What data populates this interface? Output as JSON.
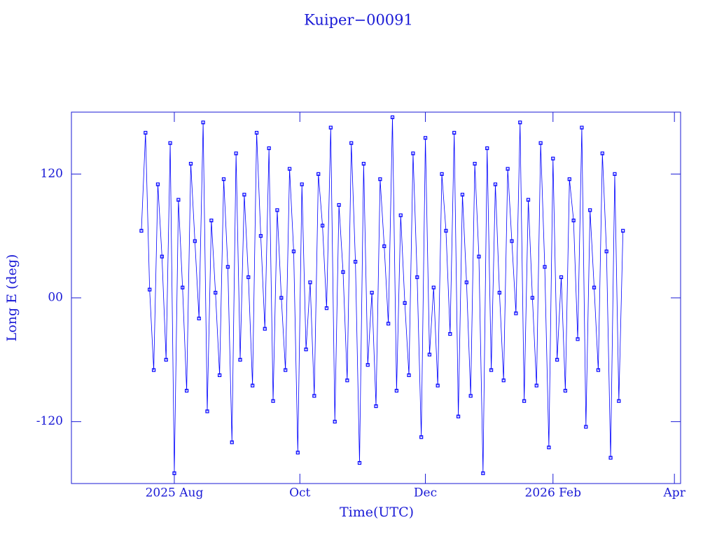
{
  "chart_data": {
    "type": "line",
    "title": "Kuiper−00091",
    "x_label": "Time(UTC)",
    "y_label": "Long E (deg)",
    "color": "#0000ff",
    "xlim": [
      "2025-06-12",
      "2026-04-04"
    ],
    "xticks": [
      {
        "value": "2025-08-01",
        "label": "2025 Aug"
      },
      {
        "value": "2025-10-01",
        "label": "Oct"
      },
      {
        "value": "2025-12-01",
        "label": "Dec"
      },
      {
        "value": "2026-02-01",
        "label": "2026 Feb"
      },
      {
        "value": "2026-04-01",
        "label": "Apr"
      }
    ],
    "ylim": [
      -180,
      180
    ],
    "yticks": [
      -120,
      {
        "value": 0,
        "label": "00"
      },
      120
    ],
    "x": [
      "2025-07-16",
      "2025-07-18",
      "2025-07-20",
      "2025-07-22",
      "2025-07-24",
      "2025-07-26",
      "2025-07-28",
      "2025-07-30",
      "2025-08-01",
      "2025-08-03",
      "2025-08-05",
      "2025-08-07",
      "2025-08-09",
      "2025-08-11",
      "2025-08-13",
      "2025-08-15",
      "2025-08-17",
      "2025-08-19",
      "2025-08-21",
      "2025-08-23",
      "2025-08-25",
      "2025-08-27",
      "2025-08-29",
      "2025-08-31",
      "2025-09-02",
      "2025-09-04",
      "2025-09-06",
      "2025-09-08",
      "2025-09-10",
      "2025-09-12",
      "2025-09-14",
      "2025-09-16",
      "2025-09-18",
      "2025-09-20",
      "2025-09-22",
      "2025-09-24",
      "2025-09-26",
      "2025-09-28",
      "2025-09-30",
      "2025-10-02",
      "2025-10-04",
      "2025-10-06",
      "2025-10-08",
      "2025-10-10",
      "2025-10-12",
      "2025-10-14",
      "2025-10-16",
      "2025-10-18",
      "2025-10-20",
      "2025-10-22",
      "2025-10-24",
      "2025-10-26",
      "2025-10-28",
      "2025-10-30",
      "2025-11-01",
      "2025-11-03",
      "2025-11-05",
      "2025-11-07",
      "2025-11-09",
      "2025-11-11",
      "2025-11-13",
      "2025-11-15",
      "2025-11-17",
      "2025-11-19",
      "2025-11-21",
      "2025-11-23",
      "2025-11-25",
      "2025-11-27",
      "2025-11-29",
      "2025-12-01",
      "2025-12-03",
      "2025-12-05",
      "2025-12-07",
      "2025-12-09",
      "2025-12-11",
      "2025-12-13",
      "2025-12-15",
      "2025-12-17",
      "2025-12-19",
      "2025-12-21",
      "2025-12-23",
      "2025-12-25",
      "2025-12-27",
      "2025-12-29",
      "2025-12-31",
      "2026-01-02",
      "2026-01-04",
      "2026-01-06",
      "2026-01-08",
      "2026-01-10",
      "2026-01-12",
      "2026-01-14",
      "2026-01-16",
      "2026-01-18",
      "2026-01-20",
      "2026-01-22",
      "2026-01-24",
      "2026-01-26",
      "2026-01-28",
      "2026-01-30",
      "2026-02-01",
      "2026-02-03",
      "2026-02-05",
      "2026-02-07",
      "2026-02-09",
      "2026-02-11",
      "2026-02-13",
      "2026-02-15",
      "2026-02-17",
      "2026-02-19",
      "2026-02-21",
      "2026-02-23",
      "2026-02-25",
      "2026-02-27",
      "2026-03-01",
      "2026-03-03",
      "2026-03-05",
      "2026-03-07"
    ],
    "values": [
      65,
      160,
      8,
      -70,
      110,
      40,
      -60,
      150,
      -170,
      95,
      10,
      -90,
      130,
      55,
      -20,
      170,
      -110,
      75,
      5,
      -75,
      115,
      30,
      -140,
      140,
      -60,
      100,
      20,
      -85,
      160,
      60,
      -30,
      145,
      -100,
      85,
      0,
      -70,
      125,
      45,
      -150,
      110,
      -50,
      15,
      -95,
      120,
      70,
      -10,
      165,
      -120,
      90,
      25,
      -80,
      150,
      35,
      -160,
      130,
      -65,
      5,
      -105,
      115,
      50,
      -25,
      175,
      -90,
      80,
      -5,
      -75,
      140,
      20,
      -135,
      155,
      -55,
      10,
      -85,
      120,
      65,
      -35,
      160,
      -115,
      100,
      15,
      -95,
      130,
      40,
      -170,
      145,
      -70,
      110,
      5,
      -80,
      125,
      55,
      -15,
      170,
      -100,
      95,
      0,
      -85,
      150,
      30,
      -145,
      135,
      -60,
      20,
      -90,
      115,
      75,
      -40,
      165,
      -125,
      85,
      10,
      -70,
      140,
      45,
      -155,
      120,
      -100,
      65
    ]
  }
}
